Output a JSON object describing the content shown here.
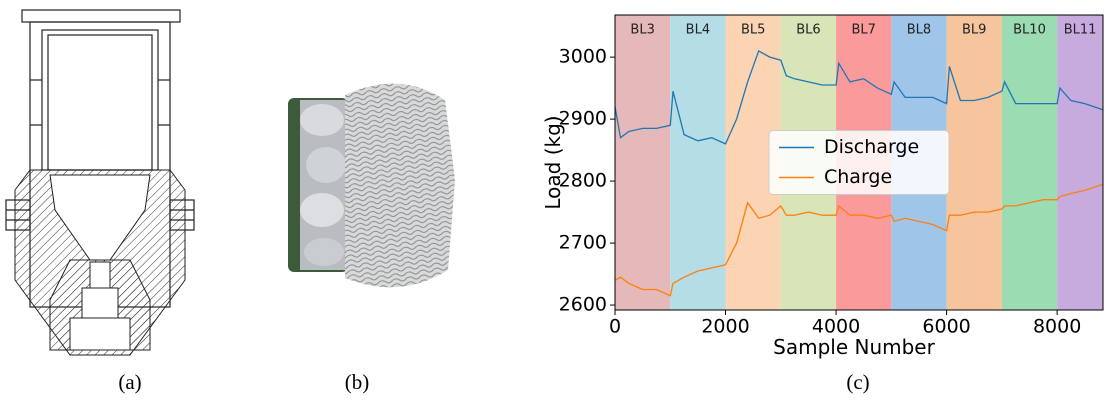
{
  "captions": [
    "(a)",
    "(b)",
    "(c)"
  ],
  "chart_data": {
    "type": "line",
    "xlabel": "Sample Number",
    "ylabel": "Load (kg)",
    "xlim": [
      0,
      8830
    ],
    "ylim": [
      2592,
      3068
    ],
    "xticks": [
      0,
      2000,
      4000,
      6000,
      8000
    ],
    "yticks": [
      2600,
      2700,
      2800,
      2900,
      3000
    ],
    "legend": "center",
    "regions": [
      {
        "label": "BL3",
        "x": 0,
        "color": "#e5b9b9"
      },
      {
        "label": "BL4",
        "x": 1000,
        "color": "#b5dde6"
      },
      {
        "label": "BL5",
        "x": 2000,
        "color": "#fbd4b4"
      },
      {
        "label": "BL6",
        "x": 3000,
        "color": "#d8e5b8"
      },
      {
        "label": "BL7",
        "x": 4000,
        "color": "#fb9a9a"
      },
      {
        "label": "BL8",
        "x": 5000,
        "color": "#9fc5e8"
      },
      {
        "label": "BL9",
        "x": 6000,
        "color": "#f6c49d"
      },
      {
        "label": "BL10",
        "x": 7000,
        "color": "#9bdcb2"
      },
      {
        "label": "BL11",
        "x": 8000,
        "color": "#c7aade"
      }
    ],
    "x": [
      0,
      100,
      250,
      500,
      750,
      1000,
      1050,
      1250,
      1500,
      1750,
      2000,
      2200,
      2400,
      2600,
      2800,
      3000,
      3100,
      3250,
      3500,
      3750,
      4000,
      4050,
      4250,
      4500,
      4750,
      5000,
      5050,
      5250,
      5500,
      5750,
      6000,
      6050,
      6250,
      6500,
      6750,
      7000,
      7050,
      7250,
      7500,
      7750,
      8000,
      8050,
      8250,
      8500,
      8830
    ],
    "series": [
      {
        "name": "Discharge",
        "color": "#1f77b4",
        "values": [
          2920,
          2870,
          2880,
          2885,
          2885,
          2890,
          2945,
          2875,
          2865,
          2870,
          2860,
          2900,
          2960,
          3010,
          3000,
          2995,
          2970,
          2965,
          2960,
          2955,
          2955,
          2990,
          2960,
          2965,
          2950,
          2940,
          2960,
          2935,
          2935,
          2935,
          2925,
          2985,
          2930,
          2930,
          2935,
          2945,
          2960,
          2925,
          2925,
          2925,
          2925,
          2950,
          2930,
          2925,
          2915
        ]
      },
      {
        "name": "Charge",
        "color": "#ff7f0e",
        "values": [
          2640,
          2645,
          2635,
          2625,
          2625,
          2615,
          2635,
          2645,
          2655,
          2660,
          2665,
          2700,
          2765,
          2740,
          2745,
          2760,
          2745,
          2745,
          2750,
          2745,
          2745,
          2760,
          2745,
          2745,
          2740,
          2745,
          2735,
          2740,
          2735,
          2730,
          2720,
          2745,
          2745,
          2750,
          2750,
          2755,
          2760,
          2760,
          2765,
          2770,
          2770,
          2775,
          2780,
          2785,
          2795
        ]
      }
    ]
  }
}
